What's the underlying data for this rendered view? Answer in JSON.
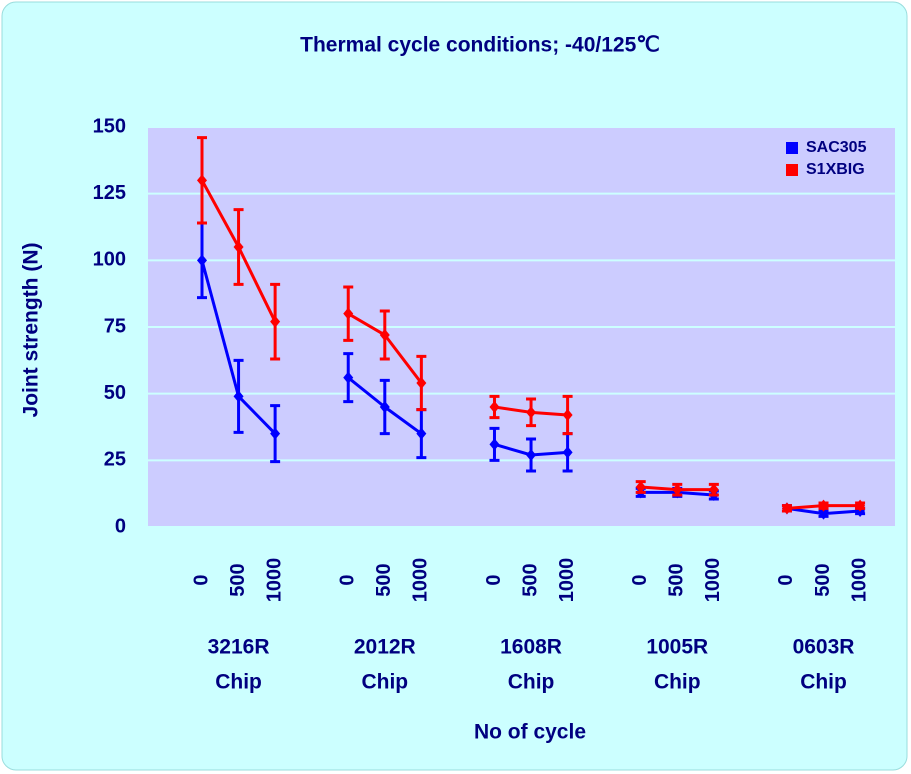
{
  "chart_data": {
    "type": "line",
    "title": "Thermal cycle conditions;    -40/125℃",
    "y_label": "Joint strength    (N)",
    "x_label": "No of cycle",
    "groups": [
      [
        "3216R",
        "Chip"
      ],
      [
        "2012R",
        "Chip"
      ],
      [
        "1608R",
        "Chip"
      ],
      [
        "1005R",
        "Chip"
      ],
      [
        "0603R",
        "Chip"
      ]
    ],
    "categories": [
      "0",
      "500",
      "1000",
      "0",
      "500",
      "1000",
      "0",
      "500",
      "1000",
      "0",
      "500",
      "1000",
      "0",
      "500",
      "1000"
    ],
    "series": [
      {
        "name": "SAC305",
        "color": "#0000ff",
        "values": [
          100,
          49,
          35,
          56,
          45,
          35,
          31,
          27,
          28,
          13,
          13,
          12,
          7,
          5,
          6
        ],
        "errors": [
          14,
          13.5,
          10.5,
          9,
          10,
          9,
          6,
          6,
          7,
          1.5,
          1.5,
          1.5,
          1,
          1,
          1
        ]
      },
      {
        "name": "S1XBIG",
        "color": "#ff0000",
        "values": [
          130,
          105,
          77,
          80,
          72,
          54,
          45,
          43,
          42,
          15,
          14,
          14,
          7,
          8,
          8
        ],
        "errors": [
          16,
          14,
          14,
          10,
          9,
          10,
          4,
          5,
          7,
          2,
          2,
          2,
          1,
          1,
          1
        ]
      }
    ],
    "ylim": [
      0,
      150
    ],
    "yticks": [
      0,
      25,
      50,
      75,
      100,
      125,
      150
    ],
    "grid": true,
    "legend": "upper right"
  }
}
